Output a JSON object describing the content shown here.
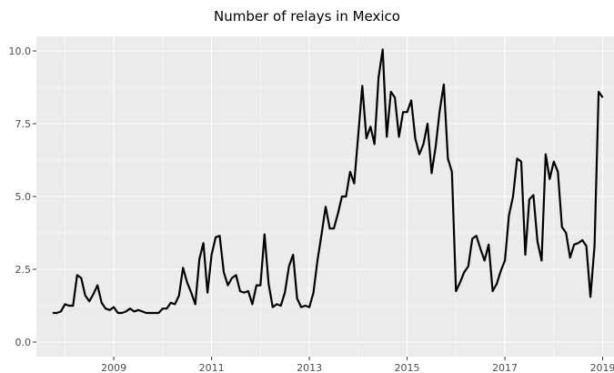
{
  "chart_data": {
    "type": "line",
    "title": "Number of relays in Mexico",
    "xlabel": "",
    "ylabel": "",
    "x_ticks": [
      "2009",
      "2011",
      "2013",
      "2015",
      "2017",
      "2019"
    ],
    "y_ticks": [
      "0.0",
      "2.5",
      "5.0",
      "7.5",
      "10.0"
    ],
    "xlim": [
      "2007-06",
      "2019-04"
    ],
    "ylim": [
      -0.5,
      10.5
    ],
    "grid": true,
    "colors": {
      "panel": "#ebebeb",
      "grid": "#ffffff",
      "line": "#000000"
    },
    "series": [
      {
        "x": [
          "2007-10",
          "2007-11",
          "2007-12",
          "2008-01",
          "2008-02",
          "2008-03",
          "2008-04",
          "2008-05",
          "2008-06",
          "2008-07",
          "2008-08",
          "2008-09",
          "2008-10",
          "2008-11",
          "2008-12",
          "2009-01",
          "2009-02",
          "2009-03",
          "2009-04",
          "2009-05",
          "2009-06",
          "2009-07",
          "2009-08",
          "2009-09",
          "2009-10",
          "2009-11",
          "2009-12",
          "2010-01",
          "2010-02",
          "2010-03",
          "2010-04",
          "2010-05",
          "2010-06",
          "2010-07",
          "2010-08",
          "2010-09",
          "2010-10",
          "2010-11",
          "2010-12",
          "2011-01",
          "2011-02",
          "2011-03",
          "2011-04",
          "2011-05",
          "2011-06",
          "2011-07",
          "2011-08",
          "2011-09",
          "2011-10",
          "2011-11",
          "2011-12",
          "2012-01",
          "2012-02",
          "2012-03",
          "2012-04",
          "2012-05",
          "2012-06",
          "2012-07",
          "2012-08",
          "2012-09",
          "2012-10",
          "2012-11",
          "2012-12",
          "2013-01",
          "2013-02",
          "2013-03",
          "2013-04",
          "2013-05",
          "2013-06",
          "2013-07",
          "2013-08",
          "2013-09",
          "2013-10",
          "2013-11",
          "2013-12",
          "2014-01",
          "2014-02",
          "2014-03",
          "2014-04",
          "2014-05",
          "2014-06",
          "2014-07",
          "2014-08",
          "2014-09",
          "2014-10",
          "2014-11",
          "2014-12",
          "2015-01",
          "2015-02",
          "2015-03",
          "2015-04",
          "2015-05",
          "2015-06",
          "2015-07",
          "2015-08",
          "2015-09",
          "2015-10",
          "2015-11",
          "2015-12",
          "2016-01",
          "2016-02",
          "2016-03",
          "2016-04",
          "2016-05",
          "2016-06",
          "2016-07",
          "2016-08",
          "2016-09",
          "2016-10",
          "2016-11",
          "2016-12",
          "2017-01",
          "2017-02",
          "2017-03",
          "2017-04",
          "2017-05",
          "2017-06",
          "2017-07",
          "2017-08",
          "2017-09",
          "2017-10",
          "2017-11",
          "2017-12",
          "2018-01",
          "2018-02",
          "2018-03",
          "2018-04",
          "2018-05",
          "2018-06",
          "2018-07",
          "2018-08",
          "2018-09",
          "2018-10",
          "2018-11",
          "2018-12",
          "2019-01"
        ],
        "values": [
          1.0,
          1.0,
          1.05,
          1.3,
          1.25,
          1.25,
          2.3,
          2.2,
          1.6,
          1.4,
          1.65,
          1.95,
          1.35,
          1.15,
          1.1,
          1.2,
          1.0,
          1.0,
          1.05,
          1.15,
          1.05,
          1.1,
          1.05,
          1.0,
          1.0,
          1.0,
          1.0,
          1.15,
          1.15,
          1.35,
          1.3,
          1.6,
          2.55,
          2.05,
          1.7,
          1.3,
          2.85,
          3.4,
          1.7,
          3.0,
          3.6,
          3.65,
          2.4,
          1.95,
          2.2,
          2.3,
          1.75,
          1.7,
          1.75,
          1.3,
          1.95,
          1.95,
          3.7,
          2.0,
          1.2,
          1.3,
          1.25,
          1.7,
          2.6,
          3.0,
          1.5,
          1.2,
          1.25,
          1.2,
          1.7,
          2.8,
          3.7,
          4.65,
          3.9,
          3.9,
          4.4,
          5.0,
          5.0,
          5.85,
          5.45,
          7.1,
          8.8,
          7.0,
          7.4,
          6.8,
          9.1,
          10.05,
          7.05,
          8.6,
          8.4,
          7.05,
          7.9,
          7.9,
          8.3,
          7.0,
          6.45,
          6.8,
          7.5,
          5.8,
          6.7,
          7.95,
          8.85,
          6.3,
          5.85,
          1.75,
          2.05,
          2.4,
          2.6,
          3.55,
          3.65,
          3.2,
          2.8,
          3.35,
          1.75,
          2.0,
          2.45,
          2.8,
          4.35,
          5.0,
          6.3,
          6.2,
          3.0,
          4.9,
          5.05,
          3.45,
          2.8,
          6.45,
          5.6,
          6.2,
          5.85,
          3.95,
          3.75,
          2.9,
          3.35,
          3.4,
          3.5,
          3.3,
          1.55,
          3.3,
          8.6,
          8.4
        ]
      }
    ]
  }
}
